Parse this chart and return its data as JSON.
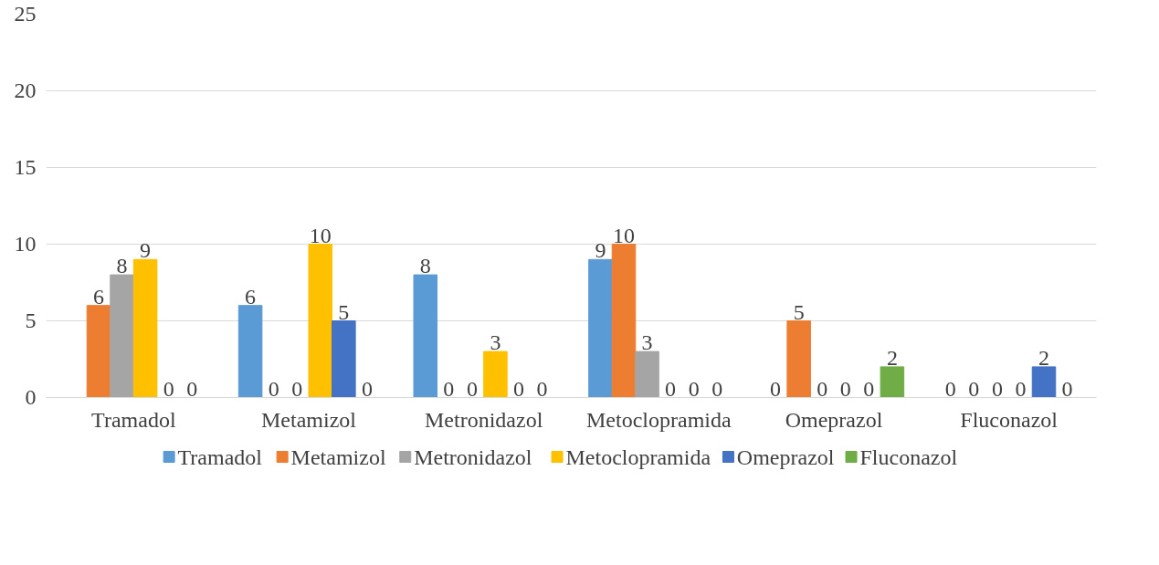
{
  "chart_data": {
    "type": "bar",
    "categories": [
      "Tramadol",
      "Metamizol",
      "Metronidazol",
      "Metoclopramida",
      "Omeprazol",
      "Fluconazol"
    ],
    "series": [
      {
        "name": "Tramadol",
        "color": "#5b9bd5",
        "values": [
          null,
          6,
          8,
          9,
          0,
          0
        ]
      },
      {
        "name": "Metamizol",
        "color": "#ed7d31",
        "values": [
          6,
          0,
          0,
          10,
          5,
          0
        ]
      },
      {
        "name": "Metronidazol",
        "color": "#a5a5a5",
        "values": [
          8,
          0,
          0,
          3,
          0,
          0
        ]
      },
      {
        "name": "Metoclopramida",
        "color": "#ffc000",
        "values": [
          9,
          10,
          3,
          0,
          0,
          0
        ]
      },
      {
        "name": "Omeprazol",
        "color": "#4472c4",
        "values": [
          0,
          5,
          0,
          0,
          0,
          2
        ]
      },
      {
        "name": "Fluconazol",
        "color": "#70ad47",
        "values": [
          0,
          0,
          0,
          0,
          2,
          0
        ]
      }
    ],
    "ylim": [
      0,
      25
    ],
    "yticks": [
      0,
      5,
      10,
      15,
      20,
      25
    ],
    "grid": "y",
    "legend": "bottom",
    "data_labels": true
  }
}
